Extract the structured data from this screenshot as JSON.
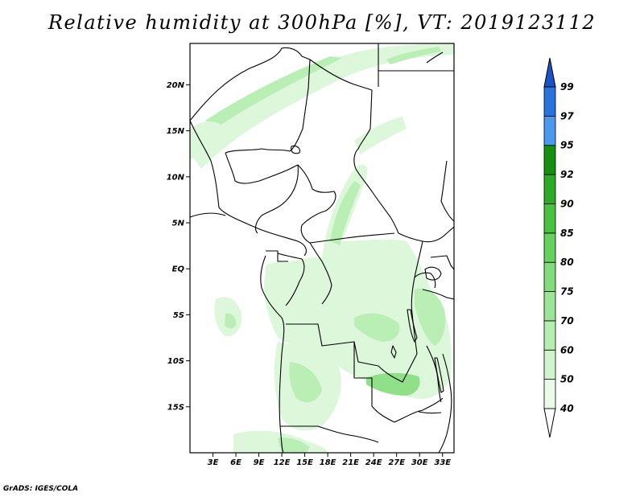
{
  "title": "Relative humidity at 300hPa [%], VT: 2019123112",
  "credit": "GrADS: IGES/COLA",
  "map": {
    "lon_range": [
      0,
      34.5
    ],
    "lat_range": [
      -20,
      24.5
    ],
    "lon_ticks": [
      {
        "value": 3,
        "label": "3E"
      },
      {
        "value": 6,
        "label": "6E"
      },
      {
        "value": 9,
        "label": "9E"
      },
      {
        "value": 12,
        "label": "12E"
      },
      {
        "value": 15,
        "label": "15E"
      },
      {
        "value": 18,
        "label": "18E"
      },
      {
        "value": 21,
        "label": "21E"
      },
      {
        "value": 24,
        "label": "24E"
      },
      {
        "value": 27,
        "label": "27E"
      },
      {
        "value": 30,
        "label": "30E"
      },
      {
        "value": 33,
        "label": "33E"
      }
    ],
    "lat_ticks": [
      {
        "value": 20,
        "label": "20N"
      },
      {
        "value": 15,
        "label": "15N"
      },
      {
        "value": 10,
        "label": "10N"
      },
      {
        "value": 5,
        "label": "5N"
      },
      {
        "value": 0,
        "label": "EQ"
      },
      {
        "value": -5,
        "label": "5S"
      },
      {
        "value": -10,
        "label": "10S"
      },
      {
        "value": -15,
        "label": "15S"
      }
    ]
  },
  "colorbar": {
    "levels": [
      "40",
      "50",
      "60",
      "70",
      "75",
      "80",
      "85",
      "90",
      "92",
      "95",
      "97",
      "99"
    ],
    "colors": [
      "#eafbe8",
      "#d0f5cc",
      "#b6eeb1",
      "#9ce596",
      "#82dc7b",
      "#66d15f",
      "#48c240",
      "#2eab26",
      "#168f12",
      "#4a99ee",
      "#2a72dd",
      "#1a53c2"
    ],
    "under_color": "#ffffff"
  },
  "colors": {
    "land_background": "#ffffff",
    "boundaries": "#000000",
    "light_moisture": "#dcf7d9",
    "moderate_moisture": "#b9eeb4",
    "strong_moisture": "#8fe088"
  }
}
